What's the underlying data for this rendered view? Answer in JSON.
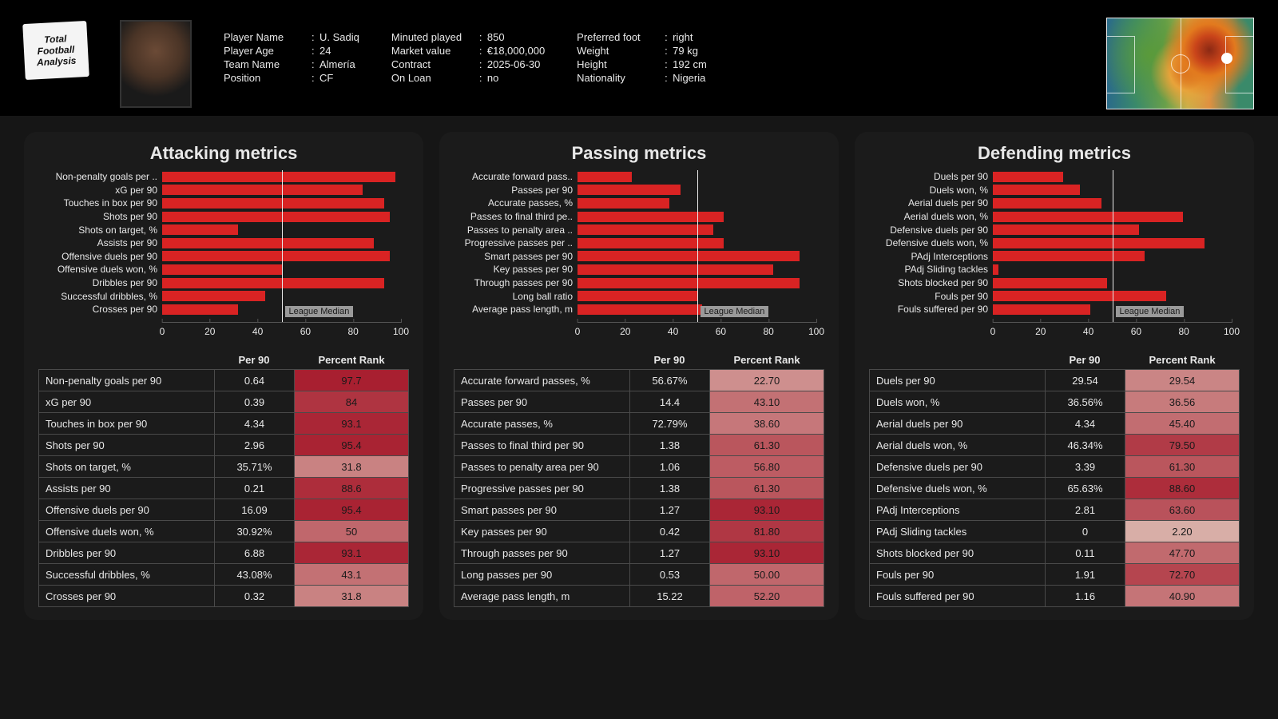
{
  "logo": [
    "Total",
    "Football",
    "Analysis"
  ],
  "player": {
    "name_label": "Player Name",
    "name": "U. Sadiq",
    "age_label": "Player Age",
    "age": "24",
    "team_label": "Team Name",
    "team": "Almería",
    "position_label": "Position",
    "position": "CF",
    "minutes_label": "Minuted played",
    "minutes": "850",
    "value_label": "Market value",
    "value": "€18,000,000",
    "contract_label": "Contract",
    "contract": "2025-06-30",
    "loan_label": "On Loan",
    "loan": "no",
    "foot_label": "Preferred foot",
    "foot": "right",
    "weight_label": "Weight",
    "weight": "79 kg",
    "height_label": "Height",
    "height": "192 cm",
    "nat_label": "Nationality",
    "nat": "Nigeria"
  },
  "axis": {
    "min": 0,
    "max": 100,
    "ticks": [
      0,
      20,
      40,
      60,
      80,
      100
    ]
  },
  "median_label": "League Median",
  "columns": {
    "per90": "Per 90",
    "rank": "Percent Rank"
  },
  "colors": {
    "bar": "#d92323",
    "panel": "#1b1b1b",
    "page": "#161616",
    "rank_scale_low": "#d9b1aa",
    "rank_scale_high": "#a71c2d"
  },
  "panels": [
    {
      "title": "Attacking metrics",
      "rows": [
        {
          "short": "Non-penalty goals per ..",
          "name": "Non-penalty goals per 90",
          "per90": "0.64",
          "rank": 97.7
        },
        {
          "short": "xG per 90",
          "name": "xG per 90",
          "per90": "0.39",
          "rank": 84
        },
        {
          "short": "Touches in box per 90",
          "name": "Touches in box per 90",
          "per90": "4.34",
          "rank": 93.1
        },
        {
          "short": "Shots per 90",
          "name": "Shots per 90",
          "per90": "2.96",
          "rank": 95.4
        },
        {
          "short": "Shots on target, %",
          "name": "Shots on target, %",
          "per90": "35.71%",
          "rank": 31.8
        },
        {
          "short": "Assists per 90",
          "name": "Assists per 90",
          "per90": "0.21",
          "rank": 88.6
        },
        {
          "short": "Offensive duels per 90",
          "name": "Offensive duels per 90",
          "per90": "16.09",
          "rank": 95.4
        },
        {
          "short": "Offensive duels won, %",
          "name": "Offensive duels won, %",
          "per90": "30.92%",
          "rank": 50
        },
        {
          "short": "Dribbles per 90",
          "name": "Dribbles per 90",
          "per90": "6.88",
          "rank": 93.1
        },
        {
          "short": "Successful dribbles, %",
          "name": "Successful dribbles, %",
          "per90": "43.08%",
          "rank": 43.1
        },
        {
          "short": "Crosses per 90",
          "name": "Crosses per 90",
          "per90": "0.32",
          "rank": 31.8
        }
      ]
    },
    {
      "title": "Passing metrics",
      "rows": [
        {
          "short": "Accurate forward pass..",
          "name": "Accurate forward passes, %",
          "per90": "56.67%",
          "rank": 22.7
        },
        {
          "short": "Passes per 90",
          "name": "Passes per 90",
          "per90": "14.4",
          "rank": 43.1
        },
        {
          "short": "Accurate passes, %",
          "name": "Accurate passes, %",
          "per90": "72.79%",
          "rank": 38.6
        },
        {
          "short": "Passes to final third pe..",
          "name": "Passes to final third per 90",
          "per90": "1.38",
          "rank": 61.3
        },
        {
          "short": "Passes to penalty area ..",
          "name": "Passes to penalty area per 90",
          "per90": "1.06",
          "rank": 56.8
        },
        {
          "short": "Progressive passes per ..",
          "name": "Progressive passes per 90",
          "per90": "1.38",
          "rank": 61.3
        },
        {
          "short": "Smart passes per 90",
          "name": "Smart passes per 90",
          "per90": "1.27",
          "rank": 93.1
        },
        {
          "short": "Key passes per 90",
          "name": "Key passes per 90",
          "per90": "0.42",
          "rank": 81.8
        },
        {
          "short": "Through passes per 90",
          "name": "Through passes per 90",
          "per90": "1.27",
          "rank": 93.1
        },
        {
          "short": "Long ball ratio",
          "name": "Long passes per 90",
          "per90": "0.53",
          "rank": 50.0
        },
        {
          "short": "Average pass length, m",
          "name": "Average pass length, m",
          "per90": "15.22",
          "rank": 52.2
        }
      ]
    },
    {
      "title": "Defending metrics",
      "rows": [
        {
          "short": "Duels per 90",
          "name": "Duels per 90",
          "per90": "29.54",
          "rank": 29.54
        },
        {
          "short": "Duels won, %",
          "name": "Duels won, %",
          "per90": "36.56%",
          "rank": 36.56
        },
        {
          "short": "Aerial duels per 90",
          "name": "Aerial duels per 90",
          "per90": "4.34",
          "rank": 45.4
        },
        {
          "short": "Aerial duels won, %",
          "name": "Aerial duels won, %",
          "per90": "46.34%",
          "rank": 79.5
        },
        {
          "short": "Defensive duels per 90",
          "name": "Defensive duels per 90",
          "per90": "3.39",
          "rank": 61.3
        },
        {
          "short": "Defensive duels won, %",
          "name": "Defensive duels won, %",
          "per90": "65.63%",
          "rank": 88.6
        },
        {
          "short": "PAdj Interceptions",
          "name": "PAdj Interceptions",
          "per90": "2.81",
          "rank": 63.6
        },
        {
          "short": "PAdj Sliding tackles",
          "name": "PAdj Sliding tackles",
          "per90": "0",
          "rank": 2.2
        },
        {
          "short": "Shots blocked per 90",
          "name": "Shots blocked per 90",
          "per90": "0.11",
          "rank": 47.7
        },
        {
          "short": "Fouls per 90",
          "name": "Fouls per 90",
          "per90": "1.91",
          "rank": 72.7
        },
        {
          "short": "Fouls suffered per 90",
          "name": "Fouls suffered per 90",
          "per90": "1.16",
          "rank": 40.9
        }
      ]
    }
  ]
}
